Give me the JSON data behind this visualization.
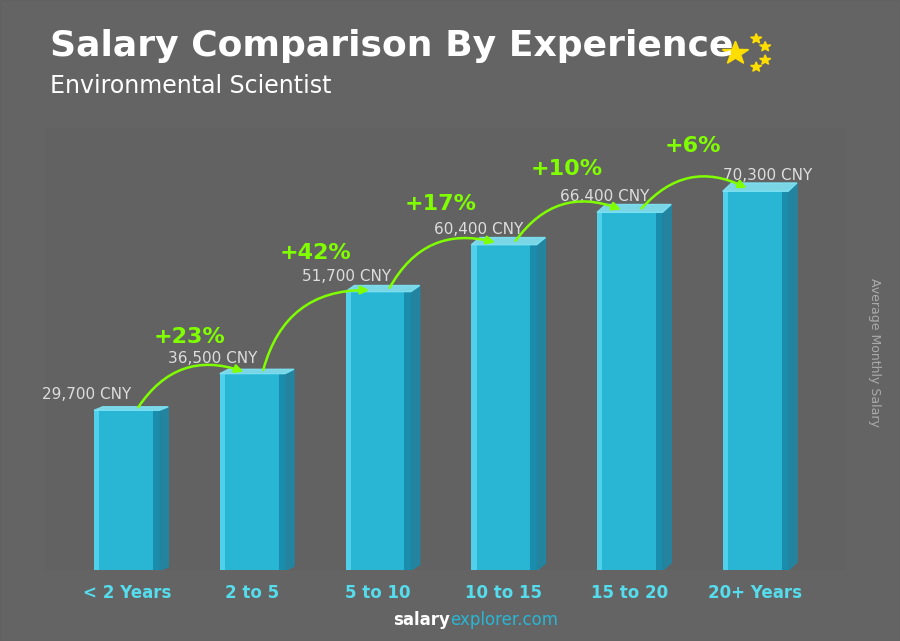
{
  "title": "Salary Comparison By Experience",
  "subtitle": "Environmental Scientist",
  "ylabel": "Average Monthly Salary",
  "categories": [
    "< 2 Years",
    "2 to 5",
    "5 to 10",
    "10 to 15",
    "15 to 20",
    "20+ Years"
  ],
  "values": [
    29700,
    36500,
    51700,
    60400,
    66400,
    70300
  ],
  "value_labels": [
    "29,700 CNY",
    "36,500 CNY",
    "51,700 CNY",
    "60,400 CNY",
    "66,400 CNY",
    "70,300 CNY"
  ],
  "pct_changes": [
    "+23%",
    "+42%",
    "+17%",
    "+10%",
    "+6%"
  ],
  "bg_color": "#6b6b6b",
  "bar_main_color": "#29b6d5",
  "bar_left_highlight": "#55d4ee",
  "bar_right_shadow": "#1a8aaa",
  "bar_top_color": "#7de3f4",
  "title_color": "#ffffff",
  "subtitle_color": "#ffffff",
  "pct_color": "#7fff00",
  "value_label_color": "#dddddd",
  "xlabel_color": "#55ddee",
  "footer_salary_color": "#ffffff",
  "footer_explorer_color": "#29b6d5",
  "ylabel_color": "#aaaaaa",
  "ylim": [
    0,
    82000
  ],
  "bar_width": 0.52,
  "title_fontsize": 26,
  "subtitle_fontsize": 17,
  "category_fontsize": 12,
  "value_label_fontsize": 11,
  "pct_fontsize": 16,
  "ylabel_fontsize": 9,
  "footer_fontsize": 12
}
